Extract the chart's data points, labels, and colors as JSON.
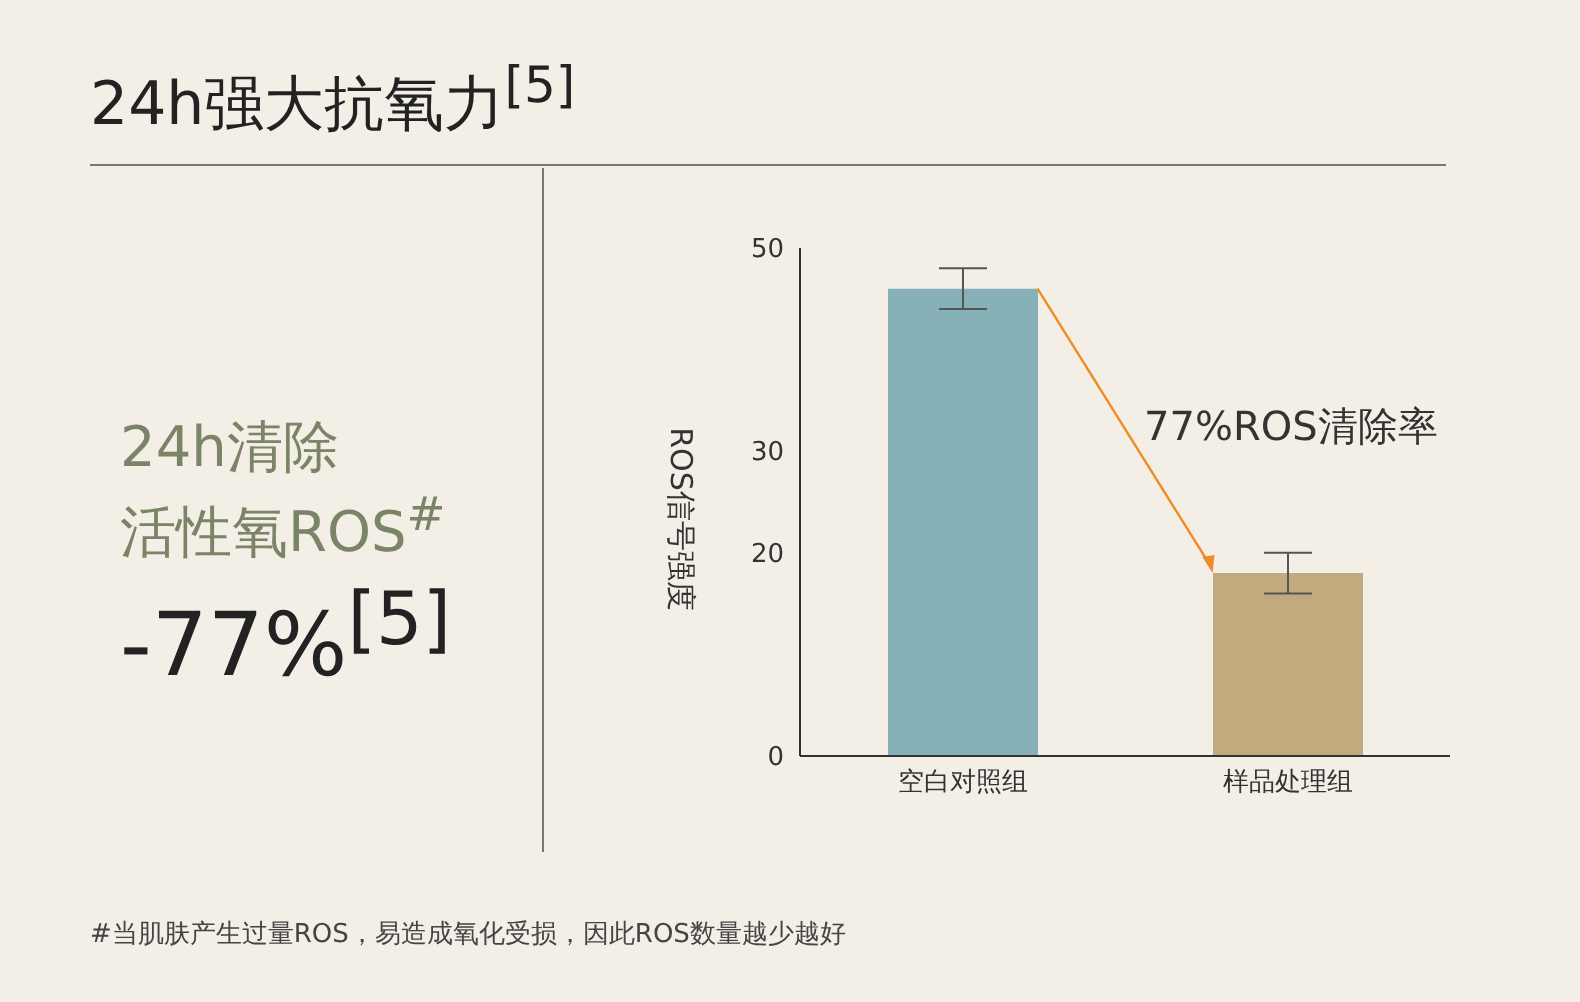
{
  "chart_data": {
    "type": "bar",
    "title": "24h强大抗氧力$^{[5]}$",
    "ylabel": "ROS信号强度",
    "categories": [
      "空白对照组",
      "样品处理组"
    ],
    "values": [
      46,
      18
    ],
    "colors": [
      "#86b1b8",
      "#c2aa7e"
    ],
    "errors": [
      2,
      2
    ],
    "ylim": [
      0,
      50
    ],
    "yticks": [
      0,
      20,
      30,
      50
    ],
    "annotations": [
      "77%ROS清除率",
      "24h清除",
      "活性氧ROS$^{#}$",
      "-77%$^{[5]}$",
      "#当肌肤产生过量ROS，易造成氧化受损，因此ROS数量越少越好"
    ]
  }
}
